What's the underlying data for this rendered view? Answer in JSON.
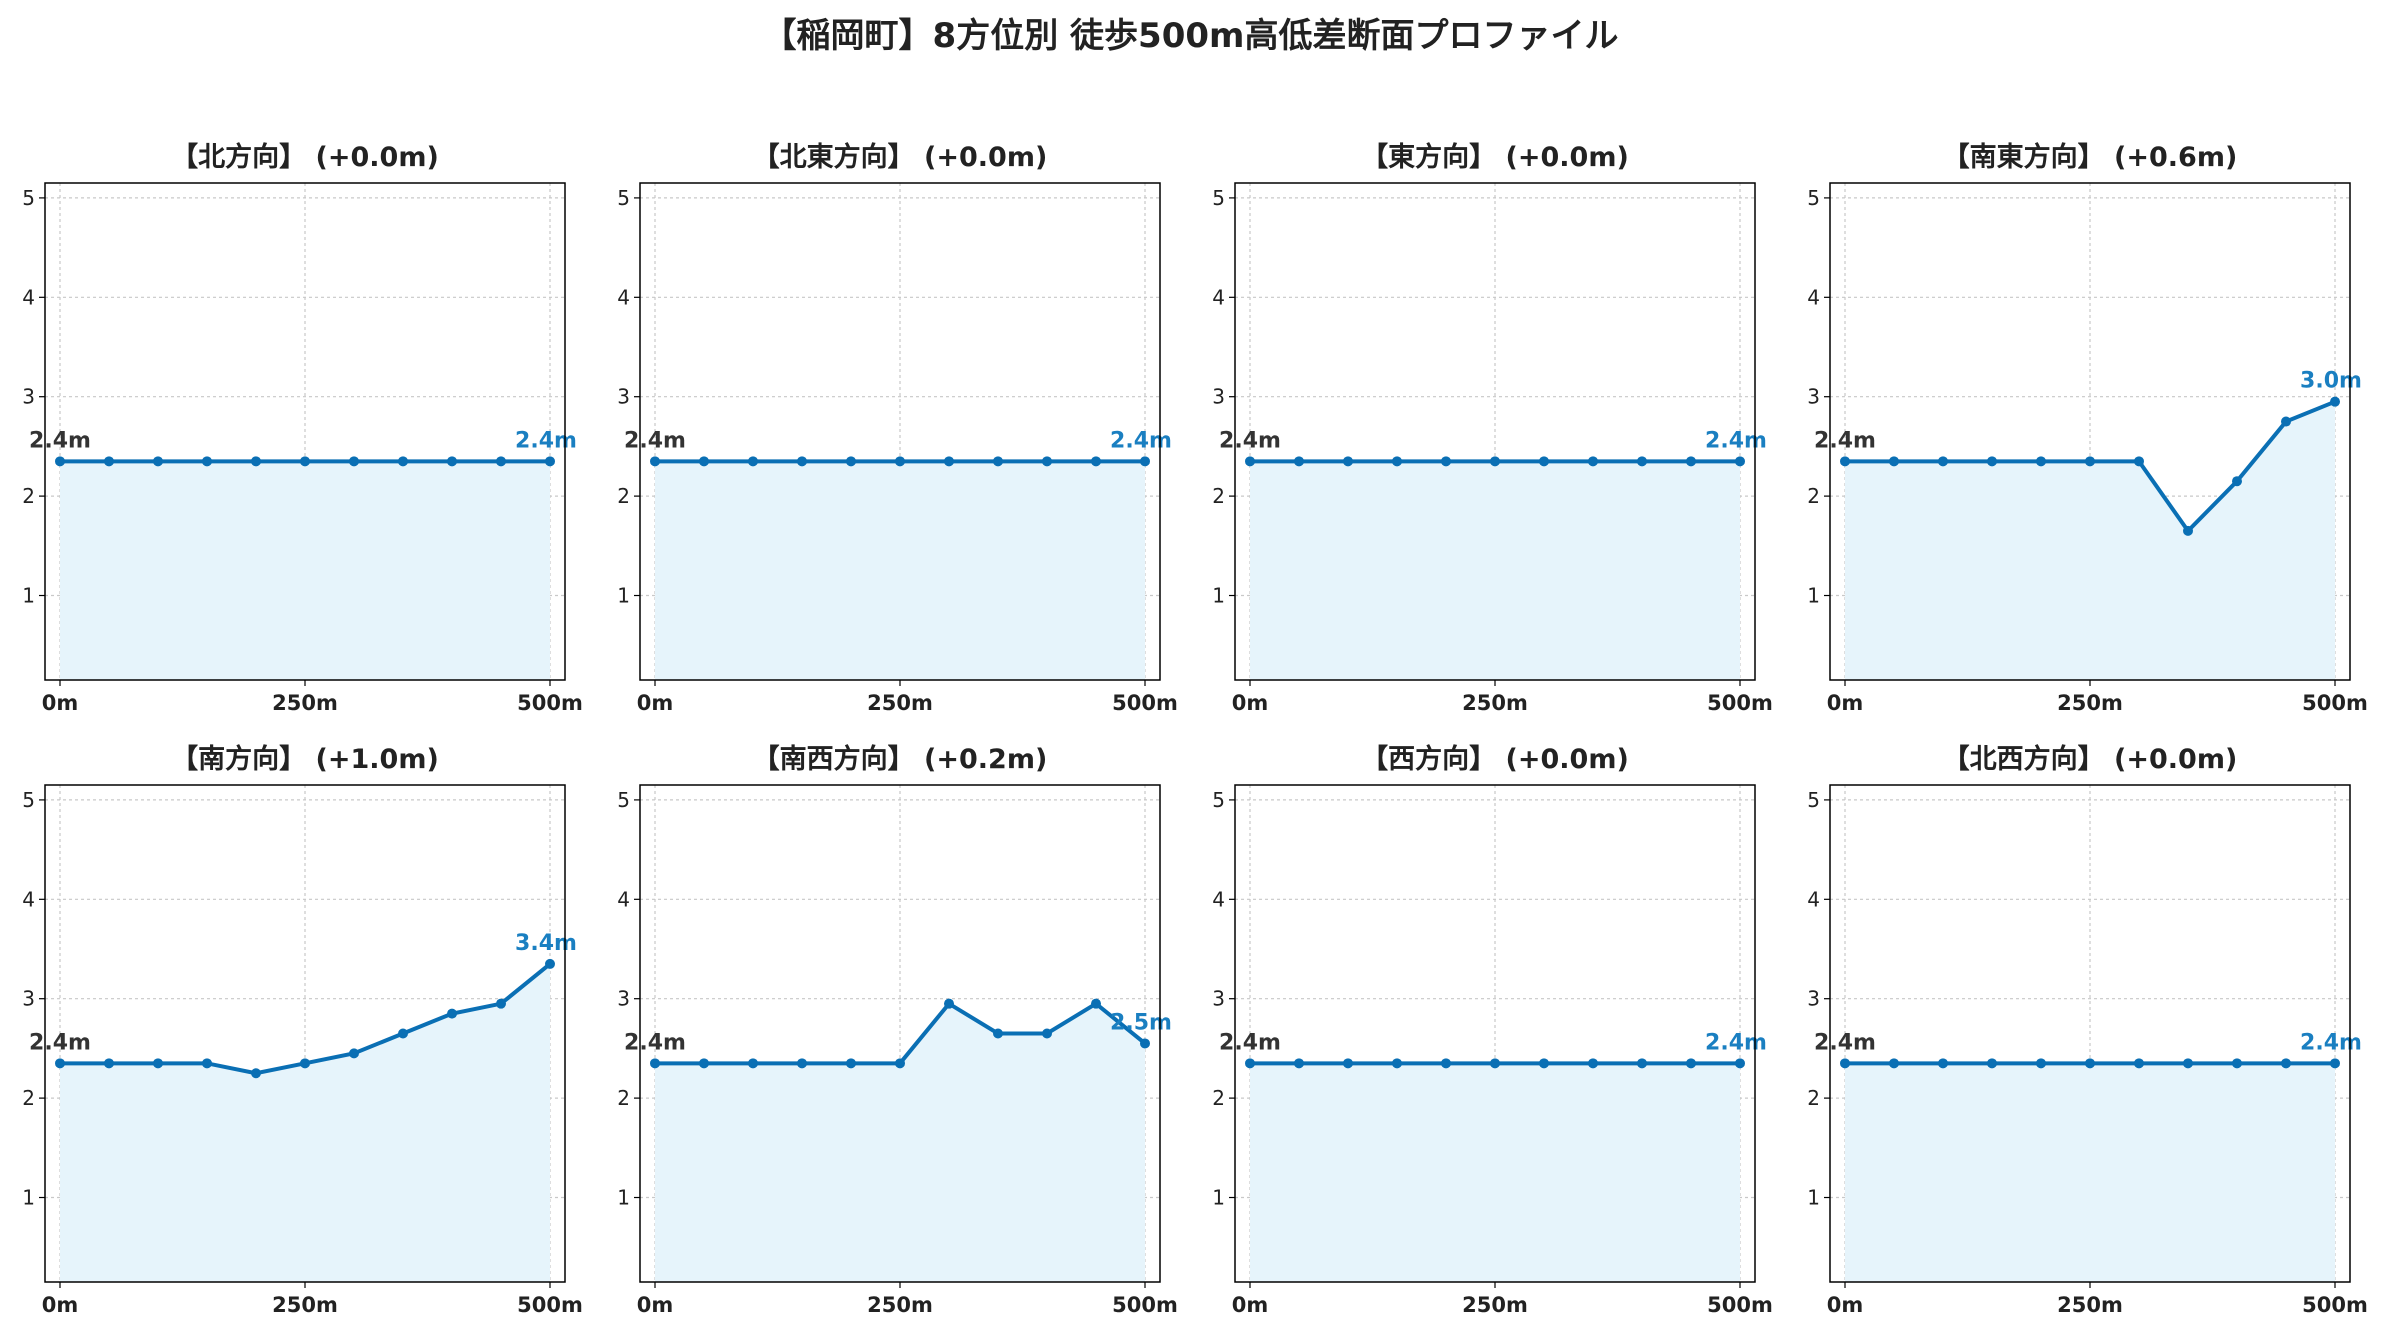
{
  "title": "【稲岡町】8方位別 徒歩500m高低差断面プロファイル",
  "chart_data": [
    {
      "type": "line",
      "title": "【北方向】 (+0.0m)",
      "x": [
        0,
        50,
        100,
        150,
        200,
        250,
        300,
        350,
        400,
        450,
        500
      ],
      "y": [
        2.35,
        2.35,
        2.35,
        2.35,
        2.35,
        2.35,
        2.35,
        2.35,
        2.35,
        2.35,
        2.35
      ],
      "start_label": "2.4m",
      "end_label": "2.4m",
      "xticks": [
        "0m",
        "250m",
        "500m"
      ],
      "yticks": [
        1,
        2,
        3,
        4,
        5
      ],
      "ylim": [
        0.15,
        5.15
      ],
      "grid": true
    },
    {
      "type": "line",
      "title": "【北東方向】 (+0.0m)",
      "x": [
        0,
        50,
        100,
        150,
        200,
        250,
        300,
        350,
        400,
        450,
        500
      ],
      "y": [
        2.35,
        2.35,
        2.35,
        2.35,
        2.35,
        2.35,
        2.35,
        2.35,
        2.35,
        2.35,
        2.35
      ],
      "start_label": "2.4m",
      "end_label": "2.4m",
      "xticks": [
        "0m",
        "250m",
        "500m"
      ],
      "yticks": [
        1,
        2,
        3,
        4,
        5
      ],
      "ylim": [
        0.15,
        5.15
      ],
      "grid": true
    },
    {
      "type": "line",
      "title": "【東方向】 (+0.0m)",
      "x": [
        0,
        50,
        100,
        150,
        200,
        250,
        300,
        350,
        400,
        450,
        500
      ],
      "y": [
        2.35,
        2.35,
        2.35,
        2.35,
        2.35,
        2.35,
        2.35,
        2.35,
        2.35,
        2.35,
        2.35
      ],
      "start_label": "2.4m",
      "end_label": "2.4m",
      "xticks": [
        "0m",
        "250m",
        "500m"
      ],
      "yticks": [
        1,
        2,
        3,
        4,
        5
      ],
      "ylim": [
        0.15,
        5.15
      ],
      "grid": true
    },
    {
      "type": "line",
      "title": "【南東方向】 (+0.6m)",
      "x": [
        0,
        50,
        100,
        150,
        200,
        250,
        300,
        350,
        400,
        450,
        500
      ],
      "y": [
        2.35,
        2.35,
        2.35,
        2.35,
        2.35,
        2.35,
        2.35,
        1.65,
        2.15,
        2.75,
        2.95
      ],
      "start_label": "2.4m",
      "end_label": "3.0m",
      "xticks": [
        "0m",
        "250m",
        "500m"
      ],
      "yticks": [
        1,
        2,
        3,
        4,
        5
      ],
      "ylim": [
        0.15,
        5.15
      ],
      "grid": true
    },
    {
      "type": "line",
      "title": "【南方向】 (+1.0m)",
      "x": [
        0,
        50,
        100,
        150,
        200,
        250,
        300,
        350,
        400,
        450,
        500
      ],
      "y": [
        2.35,
        2.35,
        2.35,
        2.35,
        2.25,
        2.35,
        2.45,
        2.65,
        2.85,
        2.95,
        3.35
      ],
      "start_label": "2.4m",
      "end_label": "3.4m",
      "xticks": [
        "0m",
        "250m",
        "500m"
      ],
      "yticks": [
        1,
        2,
        3,
        4,
        5
      ],
      "ylim": [
        0.15,
        5.15
      ],
      "grid": true
    },
    {
      "type": "line",
      "title": "【南西方向】 (+0.2m)",
      "x": [
        0,
        50,
        100,
        150,
        200,
        250,
        300,
        350,
        400,
        450,
        500
      ],
      "y": [
        2.35,
        2.35,
        2.35,
        2.35,
        2.35,
        2.35,
        2.95,
        2.65,
        2.65,
        2.95,
        2.55
      ],
      "start_label": "2.4m",
      "end_label": "2.5m",
      "xticks": [
        "0m",
        "250m",
        "500m"
      ],
      "yticks": [
        1,
        2,
        3,
        4,
        5
      ],
      "ylim": [
        0.15,
        5.15
      ],
      "grid": true
    },
    {
      "type": "line",
      "title": "【西方向】 (+0.0m)",
      "x": [
        0,
        50,
        100,
        150,
        200,
        250,
        300,
        350,
        400,
        450,
        500
      ],
      "y": [
        2.35,
        2.35,
        2.35,
        2.35,
        2.35,
        2.35,
        2.35,
        2.35,
        2.35,
        2.35,
        2.35
      ],
      "start_label": "2.4m",
      "end_label": "2.4m",
      "xticks": [
        "0m",
        "250m",
        "500m"
      ],
      "yticks": [
        1,
        2,
        3,
        4,
        5
      ],
      "ylim": [
        0.15,
        5.15
      ],
      "grid": true
    },
    {
      "type": "line",
      "title": "【北西方向】 (+0.0m)",
      "x": [
        0,
        50,
        100,
        150,
        200,
        250,
        300,
        350,
        400,
        450,
        500
      ],
      "y": [
        2.35,
        2.35,
        2.35,
        2.35,
        2.35,
        2.35,
        2.35,
        2.35,
        2.35,
        2.35,
        2.35
      ],
      "start_label": "2.4m",
      "end_label": "2.4m",
      "xticks": [
        "0m",
        "250m",
        "500m"
      ],
      "yticks": [
        1,
        2,
        3,
        4,
        5
      ],
      "ylim": [
        0.15,
        5.15
      ],
      "grid": true
    }
  ],
  "colors": {
    "line": "#0a6fb4",
    "fill": "#e6f4fb",
    "grid": "#c8c8c8",
    "start_label": "#333333",
    "end_label": "#1a7fc1"
  }
}
